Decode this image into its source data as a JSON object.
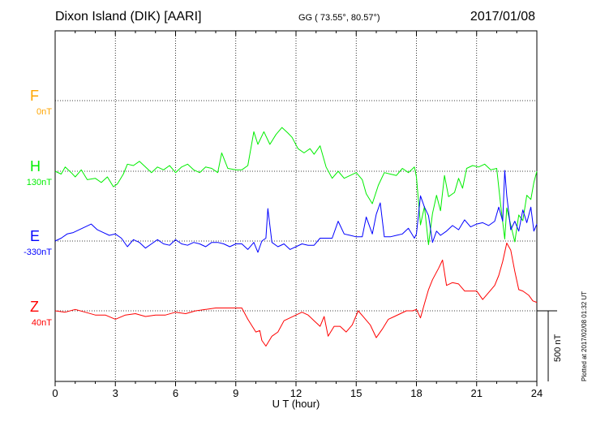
{
  "header": {
    "station": "Dixon Island (DIK)  [AARI]",
    "coords": "GG ( 73.55°,  80.57°)",
    "date": "2017/01/08"
  },
  "plotted_note": "Plotted at 2017/02/08 01:32 UT",
  "chart_data": {
    "type": "line",
    "xlabel": "U T (hour)",
    "xlim": [
      0,
      24
    ],
    "xticks": [
      "0",
      "3",
      "6",
      "9",
      "12",
      "15",
      "18",
      "21",
      "24"
    ],
    "scale_label": "500 nT",
    "scale_nT": 500,
    "series": [
      {
        "name": "F",
        "baseline_label": "0nT",
        "color": "#ffa500",
        "values": []
      },
      {
        "name": "H",
        "baseline_label": "130nT",
        "color": "#00ee00",
        "values": [
          [
            0,
            0
          ],
          [
            0.3,
            -20
          ],
          [
            0.5,
            30
          ],
          [
            0.8,
            -10
          ],
          [
            1,
            -40
          ],
          [
            1.3,
            10
          ],
          [
            1.6,
            -60
          ],
          [
            2,
            -50
          ],
          [
            2.3,
            -80
          ],
          [
            2.6,
            -40
          ],
          [
            2.9,
            -110
          ],
          [
            3.1,
            -90
          ],
          [
            3.4,
            -20
          ],
          [
            3.6,
            50
          ],
          [
            3.9,
            40
          ],
          [
            4.2,
            70
          ],
          [
            4.5,
            30
          ],
          [
            4.8,
            -10
          ],
          [
            5.1,
            30
          ],
          [
            5.4,
            10
          ],
          [
            5.7,
            40
          ],
          [
            6,
            -10
          ],
          [
            6.3,
            30
          ],
          [
            6.6,
            50
          ],
          [
            6.9,
            10
          ],
          [
            7.2,
            -10
          ],
          [
            7.5,
            30
          ],
          [
            7.8,
            20
          ],
          [
            8.1,
            -10
          ],
          [
            8.3,
            130
          ],
          [
            8.6,
            20
          ],
          [
            9,
            10
          ],
          [
            9.3,
            10
          ],
          [
            9.6,
            40
          ],
          [
            9.9,
            280
          ],
          [
            10.1,
            190
          ],
          [
            10.4,
            280
          ],
          [
            10.7,
            190
          ],
          [
            11,
            260
          ],
          [
            11.3,
            310
          ],
          [
            11.6,
            270
          ],
          [
            11.8,
            240
          ],
          [
            12.1,
            160
          ],
          [
            12.4,
            130
          ],
          [
            12.7,
            160
          ],
          [
            12.9,
            120
          ],
          [
            13.2,
            180
          ],
          [
            13.5,
            30
          ],
          [
            13.8,
            -50
          ],
          [
            14.1,
            0
          ],
          [
            14.4,
            -50
          ],
          [
            14.7,
            -30
          ],
          [
            15,
            -10
          ],
          [
            15.3,
            -60
          ],
          [
            15.5,
            -160
          ],
          [
            15.8,
            -230
          ],
          [
            16.1,
            -100
          ],
          [
            16.4,
            -10
          ],
          [
            16.7,
            -20
          ],
          [
            17,
            -30
          ],
          [
            17.3,
            20
          ],
          [
            17.6,
            -10
          ],
          [
            17.9,
            30
          ],
          [
            18,
            -40
          ],
          [
            18.2,
            -380
          ],
          [
            18.4,
            -250
          ],
          [
            18.6,
            -520
          ],
          [
            18.8,
            -300
          ],
          [
            19,
            -170
          ],
          [
            19.2,
            -280
          ],
          [
            19.4,
            -30
          ],
          [
            19.6,
            -180
          ],
          [
            19.9,
            -150
          ],
          [
            20.1,
            -50
          ],
          [
            20.3,
            -120
          ],
          [
            20.5,
            20
          ],
          [
            20.8,
            40
          ],
          [
            21.1,
            30
          ],
          [
            21.4,
            50
          ],
          [
            21.7,
            10
          ],
          [
            22,
            20
          ],
          [
            22.2,
            -240
          ],
          [
            22.4,
            -480
          ],
          [
            22.5,
            -260
          ],
          [
            22.7,
            -380
          ],
          [
            22.9,
            -500
          ],
          [
            23.1,
            -310
          ],
          [
            23.3,
            -350
          ],
          [
            23.5,
            -170
          ],
          [
            23.7,
            -200
          ],
          [
            23.85,
            -80
          ],
          [
            24,
            0
          ]
        ]
      },
      {
        "name": "E",
        "baseline_label": "-330nT",
        "color": "#0000ff",
        "values": [
          [
            0,
            0
          ],
          [
            0.3,
            20
          ],
          [
            0.6,
            50
          ],
          [
            0.9,
            60
          ],
          [
            1.2,
            80
          ],
          [
            1.5,
            100
          ],
          [
            1.8,
            120
          ],
          [
            2.1,
            80
          ],
          [
            2.4,
            60
          ],
          [
            2.7,
            40
          ],
          [
            3,
            50
          ],
          [
            3.3,
            20
          ],
          [
            3.6,
            -40
          ],
          [
            3.9,
            10
          ],
          [
            4.2,
            -10
          ],
          [
            4.5,
            -50
          ],
          [
            4.8,
            -20
          ],
          [
            5.1,
            10
          ],
          [
            5.4,
            -20
          ],
          [
            5.7,
            -30
          ],
          [
            6,
            10
          ],
          [
            6.3,
            -20
          ],
          [
            6.6,
            -30
          ],
          [
            6.9,
            -10
          ],
          [
            7.2,
            -20
          ],
          [
            7.5,
            -40
          ],
          [
            7.8,
            -10
          ],
          [
            8.1,
            -10
          ],
          [
            8.4,
            -20
          ],
          [
            8.7,
            -40
          ],
          [
            9,
            -20
          ],
          [
            9.3,
            -20
          ],
          [
            9.6,
            -60
          ],
          [
            9.9,
            -10
          ],
          [
            10.1,
            -80
          ],
          [
            10.3,
            0
          ],
          [
            10.5,
            20
          ],
          [
            10.6,
            230
          ],
          [
            10.8,
            -10
          ],
          [
            11.1,
            -40
          ],
          [
            11.4,
            -20
          ],
          [
            11.7,
            -60
          ],
          [
            12,
            -40
          ],
          [
            12.3,
            -20
          ],
          [
            12.6,
            -30
          ],
          [
            12.9,
            -30
          ],
          [
            13.2,
            20
          ],
          [
            13.5,
            20
          ],
          [
            13.8,
            20
          ],
          [
            14.1,
            140
          ],
          [
            14.4,
            50
          ],
          [
            14.7,
            40
          ],
          [
            15,
            30
          ],
          [
            15.3,
            30
          ],
          [
            15.5,
            170
          ],
          [
            15.8,
            50
          ],
          [
            16,
            190
          ],
          [
            16.2,
            270
          ],
          [
            16.4,
            30
          ],
          [
            16.7,
            30
          ],
          [
            17,
            40
          ],
          [
            17.3,
            50
          ],
          [
            17.6,
            90
          ],
          [
            17.9,
            20
          ],
          [
            18,
            50
          ],
          [
            18.2,
            320
          ],
          [
            18.4,
            240
          ],
          [
            18.6,
            180
          ],
          [
            18.8,
            -10
          ],
          [
            19,
            70
          ],
          [
            19.2,
            40
          ],
          [
            19.5,
            70
          ],
          [
            19.8,
            110
          ],
          [
            20.1,
            80
          ],
          [
            20.4,
            150
          ],
          [
            20.7,
            100
          ],
          [
            21,
            120
          ],
          [
            21.3,
            130
          ],
          [
            21.6,
            110
          ],
          [
            21.9,
            140
          ],
          [
            22.1,
            240
          ],
          [
            22.3,
            140
          ],
          [
            22.4,
            500
          ],
          [
            22.5,
            320
          ],
          [
            22.7,
            80
          ],
          [
            22.9,
            140
          ],
          [
            23.1,
            70
          ],
          [
            23.3,
            220
          ],
          [
            23.5,
            130
          ],
          [
            23.7,
            240
          ],
          [
            23.85,
            70
          ],
          [
            24,
            120
          ]
        ]
      },
      {
        "name": "Z",
        "baseline_label": "40nT",
        "color": "#ff0000",
        "values": [
          [
            0,
            0
          ],
          [
            0.5,
            -10
          ],
          [
            1,
            10
          ],
          [
            1.5,
            -10
          ],
          [
            2,
            -30
          ],
          [
            2.5,
            -30
          ],
          [
            3,
            -60
          ],
          [
            3.5,
            -30
          ],
          [
            4,
            -20
          ],
          [
            4.5,
            -40
          ],
          [
            5,
            -30
          ],
          [
            5.5,
            -30
          ],
          [
            6,
            -10
          ],
          [
            6.5,
            -20
          ],
          [
            7,
            0
          ],
          [
            7.5,
            10
          ],
          [
            8,
            20
          ],
          [
            8.5,
            20
          ],
          [
            9,
            20
          ],
          [
            9.3,
            20
          ],
          [
            9.6,
            -60
          ],
          [
            10,
            -150
          ],
          [
            10.2,
            -140
          ],
          [
            10.3,
            -210
          ],
          [
            10.5,
            -250
          ],
          [
            10.8,
            -180
          ],
          [
            11.1,
            -150
          ],
          [
            11.4,
            -70
          ],
          [
            11.7,
            -50
          ],
          [
            12,
            -30
          ],
          [
            12.3,
            -10
          ],
          [
            12.6,
            -30
          ],
          [
            12.9,
            -70
          ],
          [
            13.2,
            -110
          ],
          [
            13.4,
            -40
          ],
          [
            13.6,
            -180
          ],
          [
            13.9,
            -110
          ],
          [
            14.2,
            -110
          ],
          [
            14.5,
            -150
          ],
          [
            14.8,
            -100
          ],
          [
            15.1,
            0
          ],
          [
            15.4,
            -50
          ],
          [
            15.7,
            -100
          ],
          [
            16,
            -190
          ],
          [
            16.3,
            -130
          ],
          [
            16.6,
            -60
          ],
          [
            16.9,
            -40
          ],
          [
            17.2,
            -20
          ],
          [
            17.5,
            0
          ],
          [
            17.8,
            0
          ],
          [
            18,
            10
          ],
          [
            18.2,
            -50
          ],
          [
            18.4,
            50
          ],
          [
            18.6,
            150
          ],
          [
            18.8,
            220
          ],
          [
            19.1,
            300
          ],
          [
            19.3,
            360
          ],
          [
            19.5,
            180
          ],
          [
            19.8,
            200
          ],
          [
            20.1,
            190
          ],
          [
            20.4,
            140
          ],
          [
            20.7,
            140
          ],
          [
            21,
            140
          ],
          [
            21.3,
            80
          ],
          [
            21.6,
            130
          ],
          [
            21.9,
            180
          ],
          [
            22.1,
            250
          ],
          [
            22.3,
            350
          ],
          [
            22.5,
            480
          ],
          [
            22.7,
            430
          ],
          [
            22.9,
            280
          ],
          [
            23.1,
            150
          ],
          [
            23.3,
            140
          ],
          [
            23.6,
            110
          ],
          [
            23.8,
            70
          ],
          [
            24,
            60
          ]
        ]
      }
    ]
  }
}
